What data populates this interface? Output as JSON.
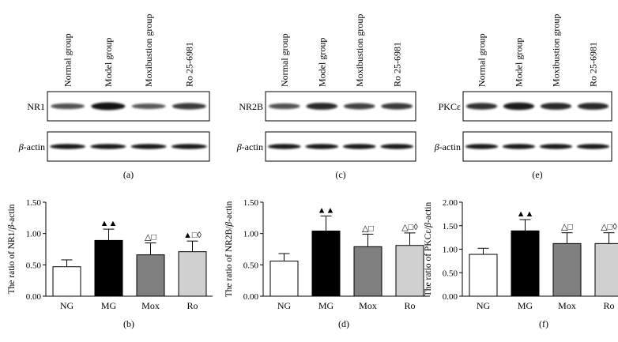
{
  "blots": [
    {
      "letter": "(a)",
      "group_labels": [
        "Normal group",
        "Model group",
        "Moxibustion group",
        "Ro 25-6981"
      ],
      "target_label": "NR1",
      "actin_label": "β-actin",
      "target_intensity": [
        0.55,
        0.95,
        0.5,
        0.7
      ]
    },
    {
      "letter": "(c)",
      "group_labels": [
        "Normal group",
        "Model group",
        "Moxibustion group",
        "Ro 25-6981"
      ],
      "target_label": "NR2B",
      "actin_label": "β-actin",
      "target_intensity": [
        0.55,
        0.8,
        0.65,
        0.7
      ]
    },
    {
      "letter": "(e)",
      "group_labels": [
        "Normal group",
        "Model group",
        "Moxibustion group",
        "Ro 25-6981"
      ],
      "target_label": "PKCε",
      "actin_label": "β-actin",
      "target_intensity": [
        0.75,
        0.9,
        0.8,
        0.8
      ]
    }
  ],
  "chart_data": [
    {
      "type": "bar",
      "letter": "(b)",
      "categories": [
        "NG",
        "MG",
        "Mox",
        "Ro"
      ],
      "values": [
        0.47,
        0.89,
        0.66,
        0.71
      ],
      "errors": [
        0.11,
        0.18,
        0.19,
        0.17
      ],
      "colors": [
        "#ffffff",
        "#000000",
        "#808080",
        "#d0d0d0"
      ],
      "annotations": [
        "",
        "▲▲",
        "△□",
        "▲□◊"
      ],
      "ylabel_parts": [
        "The ratio of NR1/",
        "β",
        "-actin"
      ],
      "yticks": [
        "0.00",
        "0.50",
        "1.00",
        "1.50"
      ],
      "ylim": [
        0,
        1.5
      ]
    },
    {
      "type": "bar",
      "letter": "(d)",
      "categories": [
        "NG",
        "MG",
        "Mox",
        "Ro"
      ],
      "values": [
        0.56,
        1.04,
        0.79,
        0.81
      ],
      "errors": [
        0.12,
        0.24,
        0.2,
        0.2
      ],
      "colors": [
        "#ffffff",
        "#000000",
        "#808080",
        "#d0d0d0"
      ],
      "annotations": [
        "",
        "▲▲",
        "△□",
        "△□◊"
      ],
      "ylabel_parts": [
        "The ratio of NR2B/",
        "β",
        "-actin"
      ],
      "yticks": [
        "0.00",
        "0.50",
        "1.00",
        "1.50"
      ],
      "ylim": [
        0,
        1.5
      ]
    },
    {
      "type": "bar",
      "letter": "(f)",
      "categories": [
        "NG",
        "MG",
        "Mox",
        "Ro"
      ],
      "values": [
        0.89,
        1.39,
        1.12,
        1.12
      ],
      "errors": [
        0.13,
        0.24,
        0.23,
        0.23
      ],
      "colors": [
        "#ffffff",
        "#000000",
        "#808080",
        "#d0d0d0"
      ],
      "annotations": [
        "",
        "▲▲",
        "△□",
        "△□◊"
      ],
      "ylabel_parts": [
        "The ratio of PKCε/",
        "β",
        "-actin"
      ],
      "yticks": [
        "0.00",
        "0.50",
        "1.00",
        "1.50",
        "2.00"
      ],
      "ylim": [
        0,
        2
      ]
    }
  ]
}
